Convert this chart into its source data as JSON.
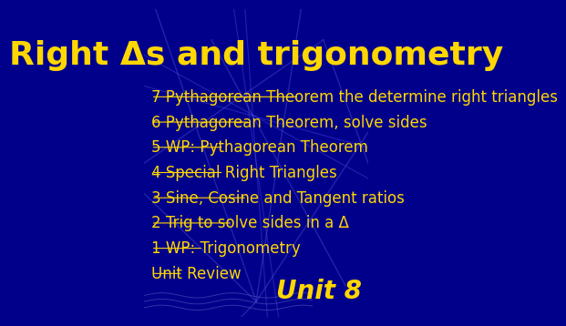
{
  "title": "Right Δs and trigonometry",
  "title_color": "#FFD700",
  "title_fontsize": 26,
  "bg_color": "#00008B",
  "list_items": [
    "7 Pythagorean Theorem the determine right triangles",
    "6 Pythagorean Theorem, solve sides",
    "5 WP: Pythagorean Theorem",
    "4 Special Right Triangles",
    "3 Sine, Cosine and Tangent ratios",
    "2 Trig to solve sides in a Δ",
    "1 WP: Trigonometry",
    "Unit Review"
  ],
  "list_color": "#FFD700",
  "list_fontsize": 12,
  "unit_text": "Unit 8",
  "unit_color": "#FFD700",
  "unit_fontsize": 20
}
